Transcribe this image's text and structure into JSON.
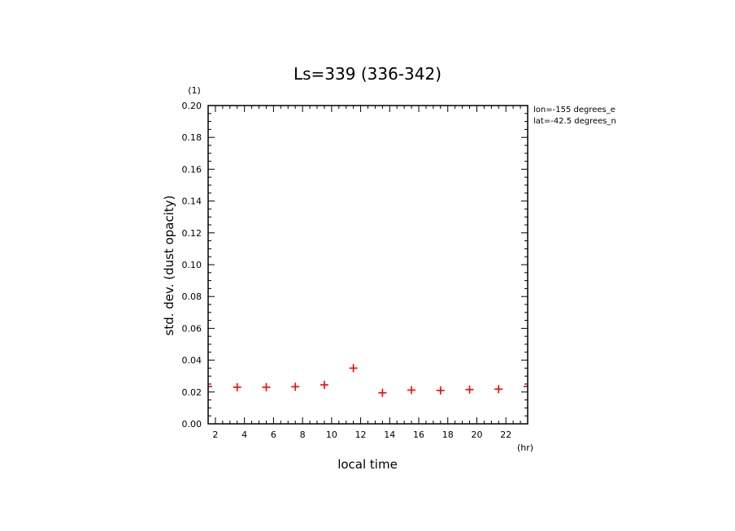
{
  "chart_data": {
    "type": "scatter",
    "title": "Ls=339 (336-342)",
    "xlabel": "local time",
    "ylabel": "std. dev. (dust opacity)",
    "x_unit": "(hr)",
    "y_unit": "(1)",
    "xlim": [
      1.5,
      23.5
    ],
    "ylim": [
      0,
      0.2
    ],
    "xticks": [
      2,
      4,
      6,
      8,
      10,
      12,
      14,
      16,
      18,
      20,
      22
    ],
    "yticks": [
      0.0,
      0.02,
      0.04,
      0.06,
      0.08,
      0.1,
      0.12,
      0.14,
      0.16,
      0.18,
      0.2
    ],
    "ytick_labels": [
      "0.00",
      "0.02",
      "0.04",
      "0.06",
      "0.08",
      "0.10",
      "0.12",
      "0.14",
      "0.16",
      "0.18",
      "0.20"
    ],
    "grid": false,
    "marker": "+",
    "marker_color": "#ff0000",
    "annotations": [
      "lon=-155 degrees_e",
      "lat=-42.5 degrees_n"
    ],
    "series": [
      {
        "x": [
          1.5,
          3.5,
          5.5,
          7.5,
          9.5,
          11.5,
          13.5,
          15.5,
          17.5,
          19.5,
          21.5,
          23.5
        ],
        "values": [
          0.0235,
          0.023,
          0.023,
          0.0233,
          0.0245,
          0.035,
          0.0195,
          0.0212,
          0.021,
          0.0215,
          0.0218,
          0.0235
        ]
      }
    ]
  }
}
